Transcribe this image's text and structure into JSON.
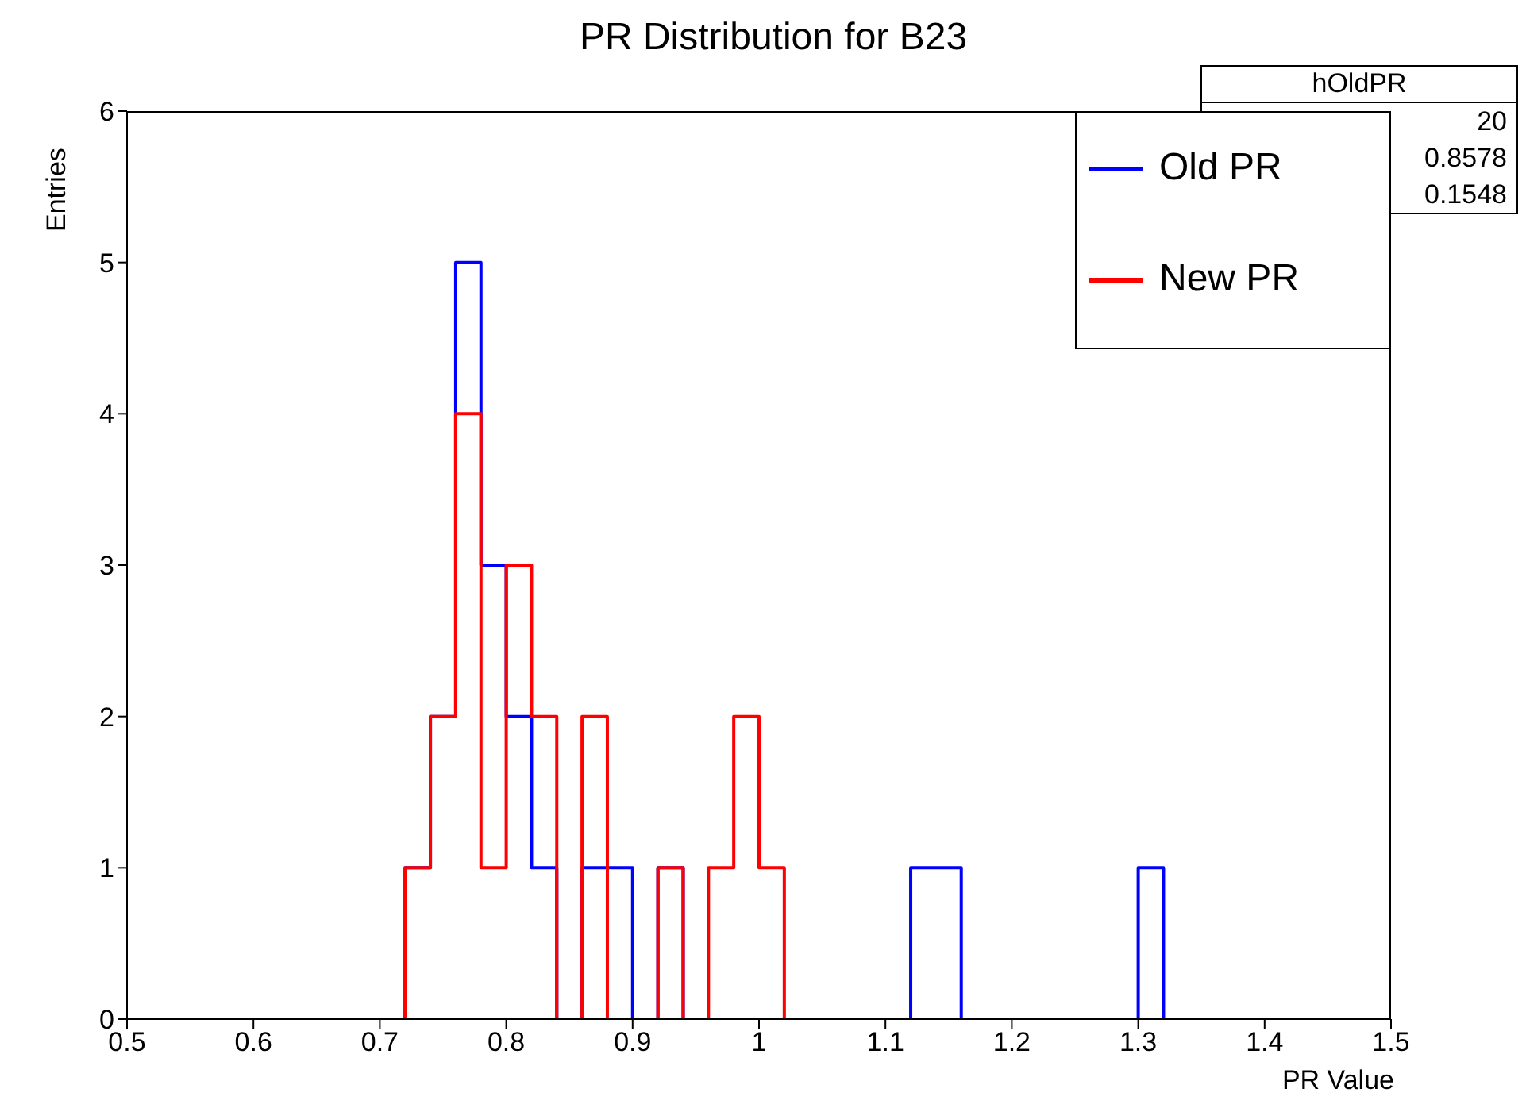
{
  "chart_data": {
    "type": "histogram",
    "title": "PR Distribution for B23",
    "xlabel": "PR Value",
    "ylabel": "Entries",
    "bins": [
      0.5,
      0.52,
      0.54,
      0.56,
      0.58,
      0.6,
      0.62,
      0.64,
      0.66,
      0.68,
      0.7,
      0.72,
      0.74,
      0.76,
      0.78,
      0.8,
      0.82,
      0.84,
      0.86,
      0.88,
      0.9,
      0.92,
      0.94,
      0.96,
      0.98,
      1.0,
      1.02,
      1.04,
      1.06,
      1.08,
      1.1,
      1.12,
      1.14,
      1.16,
      1.18,
      1.2,
      1.22,
      1.24,
      1.26,
      1.28,
      1.3,
      1.32,
      1.34,
      1.36,
      1.38,
      1.4,
      1.42,
      1.44,
      1.46,
      1.48,
      1.5
    ],
    "series": [
      {
        "name": "Old PR",
        "color": "#0000ff",
        "values": [
          0,
          0,
          0,
          0,
          0,
          0,
          0,
          0,
          0,
          0,
          0,
          1,
          2,
          5,
          3,
          2,
          1,
          0,
          1,
          1,
          0,
          1,
          0,
          0,
          0,
          0,
          0,
          0,
          0,
          0,
          0,
          1,
          1,
          0,
          0,
          0,
          0,
          0,
          0,
          0,
          1,
          0,
          0,
          0,
          0,
          0,
          0,
          0,
          0,
          0
        ]
      },
      {
        "name": "New PR",
        "color": "#ff0000",
        "values": [
          0,
          0,
          0,
          0,
          0,
          0,
          0,
          0,
          0,
          0,
          0,
          1,
          2,
          4,
          1,
          3,
          2,
          0,
          2,
          0,
          0,
          1,
          0,
          1,
          2,
          1,
          0,
          0,
          0,
          0,
          0,
          0,
          0,
          0,
          0,
          0,
          0,
          0,
          0,
          0,
          0,
          0,
          0,
          0,
          0,
          0,
          0,
          0,
          0,
          0
        ]
      }
    ],
    "xlim": [
      0.5,
      1.5
    ],
    "xticks": [
      0.5,
      0.6,
      0.7,
      0.8,
      0.9,
      1,
      1.1,
      1.2,
      1.3,
      1.4,
      1.5
    ],
    "ylim": [
      0,
      6
    ],
    "yticks": [
      0,
      1,
      2,
      3,
      4,
      5,
      6
    ],
    "legend": "top right",
    "annotations": [
      "hOldPR",
      "20",
      "0.8578",
      "0.1548"
    ]
  }
}
